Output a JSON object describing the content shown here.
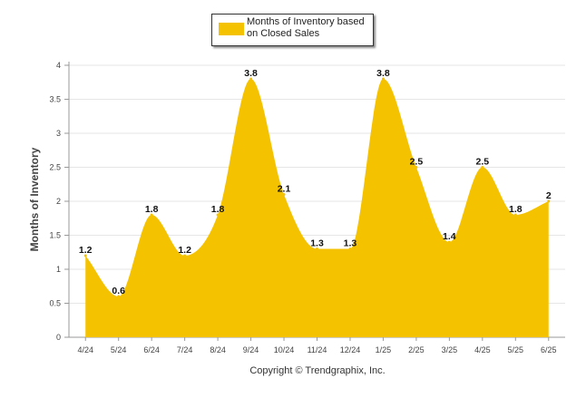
{
  "chart_data": {
    "type": "area",
    "categories": [
      "4/24",
      "5/24",
      "6/24",
      "7/24",
      "8/24",
      "9/24",
      "10/24",
      "11/24",
      "12/24",
      "1/25",
      "2/25",
      "3/25",
      "4/25",
      "5/25",
      "6/25"
    ],
    "series": [
      {
        "name": "Months of Inventory based on Closed Sales",
        "values": [
          1.2,
          0.6,
          1.8,
          1.2,
          1.8,
          3.8,
          2.1,
          1.3,
          1.3,
          3.8,
          2.5,
          1.4,
          2.5,
          1.8,
          2
        ]
      }
    ],
    "ylabel": "Months of Inventory",
    "xlabel": "",
    "ylim": [
      0,
      4
    ],
    "yticks": [
      0,
      0.5,
      1,
      1.5,
      2,
      2.5,
      3,
      3.5,
      4
    ],
    "yticklabels": [
      "0",
      "0.5",
      "1",
      "1.5",
      "2",
      "2.5",
      "3",
      "3.5",
      "4"
    ],
    "data_labels": [
      "1.2",
      "0.6",
      "1.8",
      "1.2",
      "1.8",
      "3.8",
      "2.1",
      "1.3",
      "1.3",
      "3.8",
      "2.5",
      "1.4",
      "2.5",
      "1.8",
      "2"
    ],
    "grid": true,
    "legend_position": "top-center",
    "color": "#f5c200"
  },
  "copyright": "Copyright © Trendgraphix, Inc."
}
